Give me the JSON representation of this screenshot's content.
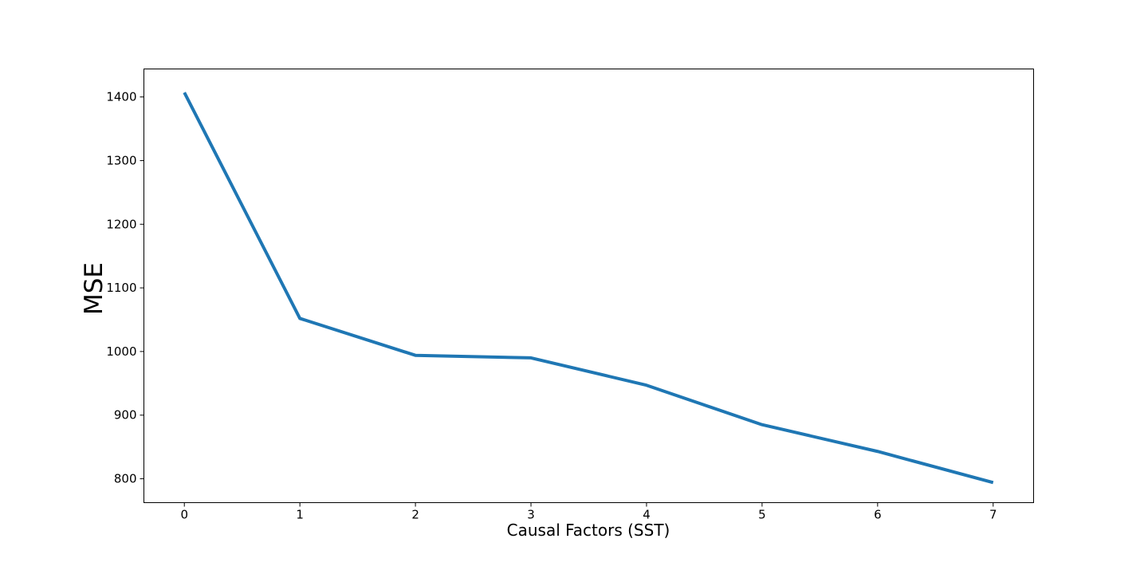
{
  "chart_data": {
    "type": "line",
    "title": "",
    "xlabel": "Causal Factors (SST)",
    "ylabel": "MSE",
    "x": [
      0,
      1,
      2,
      3,
      4,
      5,
      6,
      7
    ],
    "series": [
      {
        "values": [
          1407,
          1052,
          994,
          990,
          947,
          885,
          843,
          794
        ],
        "color": "#1f77b4"
      }
    ],
    "xlim": [
      -0.35,
      7.35
    ],
    "ylim": [
      762.5,
      1444
    ],
    "xticks": [
      "0",
      "1",
      "2",
      "3",
      "4",
      "5",
      "6",
      "7"
    ],
    "yticks": [
      "800",
      "900",
      "1000",
      "1100",
      "1200",
      "1300",
      "1400"
    ],
    "grid": false,
    "legend": "none"
  }
}
